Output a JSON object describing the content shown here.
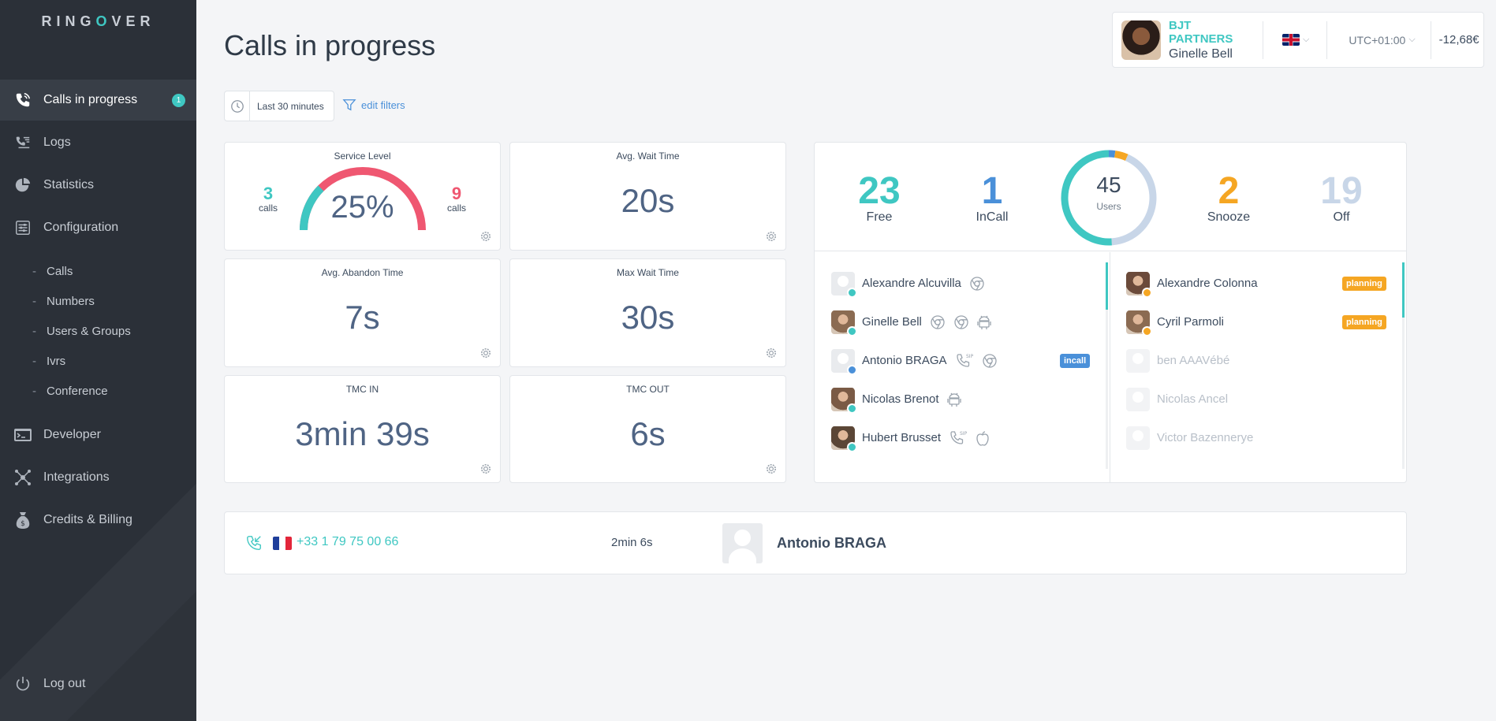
{
  "app": {
    "logo_prefix": "RING",
    "logo_o": "O",
    "logo_suffix": "VER"
  },
  "sidebar": {
    "items": [
      {
        "label": "Calls in progress",
        "badge": "1",
        "icon": "phone-icon"
      },
      {
        "label": "Logs",
        "icon": "logs-icon"
      },
      {
        "label": "Statistics",
        "icon": "pie-chart-icon"
      },
      {
        "label": "Configuration",
        "icon": "sliders-icon"
      }
    ],
    "sub_items": [
      "Calls",
      "Numbers",
      "Users & Groups",
      "Ivrs",
      "Conference"
    ],
    "items_bottom": [
      {
        "label": "Developer",
        "icon": "terminal-icon"
      },
      {
        "label": "Integrations",
        "icon": "network-icon"
      },
      {
        "label": "Credits & Billing",
        "icon": "money-bag-icon"
      }
    ],
    "logout": "Log out",
    "sub_dash": "-"
  },
  "header": {
    "title": "Calls in progress",
    "company": "BJT PARTNERS",
    "user": "Ginelle Bell",
    "timezone": "UTC+01:00",
    "credit": "-12,68€",
    "chevron": "⌵"
  },
  "filters": {
    "time_range": "Last 30 minutes",
    "edit_label": "edit filters"
  },
  "stats": {
    "service_level": {
      "title": "Service Level",
      "value": "25%",
      "left_num": "3",
      "left_sub": "calls",
      "right_num": "9",
      "right_sub": "calls",
      "fraction": 0.25
    },
    "avg_wait": {
      "title": "Avg. Wait Time",
      "value": "20s"
    },
    "avg_abandon": {
      "title": "Avg. Abandon Time",
      "value": "7s"
    },
    "max_wait": {
      "title": "Max Wait Time",
      "value": "30s"
    },
    "tmc_in": {
      "title": "TMC IN",
      "value": "3min 39s"
    },
    "tmc_out": {
      "title": "TMC OUT",
      "value": "6s"
    }
  },
  "users_summary": {
    "free": {
      "count": "23",
      "label": "Free"
    },
    "incall": {
      "count": "1",
      "label": "InCall"
    },
    "total": {
      "count": "45",
      "label": "Users"
    },
    "snooze": {
      "count": "2",
      "label": "Snooze"
    },
    "off": {
      "count": "19",
      "label": "Off"
    }
  },
  "users_left": [
    {
      "name": "Alexandre Alcuvilla",
      "devices": [
        "chrome-icon"
      ],
      "status": "free",
      "avatar": "blank"
    },
    {
      "name": "Ginelle Bell",
      "devices": [
        "chrome-icon",
        "chrome-icon",
        "android-icon"
      ],
      "status": "free",
      "avatar": "photo"
    },
    {
      "name": "Antonio BRAGA",
      "devices": [
        "sip-phone-icon",
        "chrome-icon"
      ],
      "status": "incall",
      "avatar": "blank",
      "tag": "incall"
    },
    {
      "name": "Nicolas Brenot",
      "devices": [
        "android-icon"
      ],
      "status": "free",
      "avatar": "photo"
    },
    {
      "name": "Hubert Brusset",
      "devices": [
        "sip-phone-icon",
        "apple-icon"
      ],
      "status": "free",
      "avatar": "photo"
    }
  ],
  "users_right": [
    {
      "name": "Alexandre Colonna",
      "status": "snooze",
      "avatar": "photo",
      "tag": "planning"
    },
    {
      "name": "Cyril Parmoli",
      "status": "snooze",
      "avatar": "photo",
      "tag": "planning"
    },
    {
      "name": "ben AAAVébé",
      "status": "off",
      "avatar": "blank"
    },
    {
      "name": "Nicolas Ancel",
      "status": "off",
      "avatar": "blank"
    },
    {
      "name": "Victor Bazennerye",
      "status": "off",
      "avatar": "blank"
    }
  ],
  "call": {
    "number": "+33 1 79 75 00 66",
    "duration": "2min 6s",
    "user": "Antonio BRAGA"
  },
  "colors": {
    "teal": "#3fc7c2",
    "blue": "#4a90d9",
    "orange": "#f5a623",
    "light_blue": "#c8d6e8",
    "red": "#ef5771",
    "sidebar": "#2b3038"
  }
}
